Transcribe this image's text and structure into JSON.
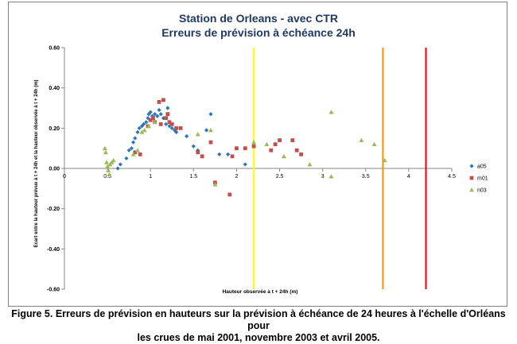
{
  "chart_data": {
    "type": "scatter",
    "title": "Station de Orleans - avec CTR",
    "subtitle": "Erreurs de prévision à échéance 24h",
    "xlabel": "Hauteur observée à t + 24h (m)",
    "ylabel": "Ecart entre la hauteur prévue à t + 24h et la hauteur observée à t + 24h (m)",
    "xlim": [
      0,
      4.5
    ],
    "ylim": [
      -0.6,
      0.6
    ],
    "xticks": [
      0,
      0.5,
      1,
      1.5,
      2,
      2.5,
      3,
      3.5,
      4,
      4.5
    ],
    "xtick_labels": [
      "0",
      "0.5",
      "1",
      "1.5",
      "2",
      "2.5",
      "3",
      "3.5",
      "4",
      "4.5"
    ],
    "yticks": [
      -0.6,
      -0.4,
      -0.2,
      0,
      0.2,
      0.4,
      0.6
    ],
    "ytick_labels": [
      "-0.60",
      "-0.40",
      "-0.20",
      "0.00",
      "0.20",
      "0.40",
      "0.60"
    ],
    "grid": false,
    "legend_position": "right",
    "vertical_lines": [
      {
        "x": 2.2,
        "color": "#ffff00"
      },
      {
        "x": 3.7,
        "color": "#f39200"
      },
      {
        "x": 4.2,
        "color": "#e3000f"
      }
    ],
    "series": [
      {
        "name": "a05",
        "color": "#2e75b6",
        "marker": "diamond",
        "points": [
          [
            0.62,
            0.0
          ],
          [
            0.65,
            0.02
          ],
          [
            0.72,
            0.05
          ],
          [
            0.75,
            0.09
          ],
          [
            0.78,
            0.1
          ],
          [
            0.8,
            0.13
          ],
          [
            0.82,
            0.15
          ],
          [
            0.85,
            0.18
          ],
          [
            0.87,
            0.2
          ],
          [
            0.9,
            0.21
          ],
          [
            0.92,
            0.22
          ],
          [
            0.95,
            0.23
          ],
          [
            0.97,
            0.25
          ],
          [
            0.98,
            0.27
          ],
          [
            1.0,
            0.28
          ],
          [
            1.02,
            0.26
          ],
          [
            1.05,
            0.27
          ],
          [
            1.08,
            0.26
          ],
          [
            1.1,
            0.29
          ],
          [
            1.12,
            0.27
          ],
          [
            1.15,
            0.25
          ],
          [
            1.18,
            0.22
          ],
          [
            1.2,
            0.3
          ],
          [
            1.22,
            0.21
          ],
          [
            1.25,
            0.2
          ],
          [
            1.28,
            0.19
          ],
          [
            1.3,
            0.18
          ],
          [
            1.42,
            0.16
          ],
          [
            1.5,
            0.11
          ],
          [
            1.55,
            0.09
          ],
          [
            1.65,
            0.19
          ],
          [
            1.7,
            0.27
          ],
          [
            1.8,
            0.07
          ],
          [
            1.9,
            0.07
          ],
          [
            2.1,
            0.02
          ]
        ]
      },
      {
        "name": "m01",
        "color": "#c0504d",
        "marker": "square",
        "points": [
          [
            0.82,
            0.08
          ],
          [
            0.88,
            0.07
          ],
          [
            0.97,
            0.21
          ],
          [
            1.0,
            0.24
          ],
          [
            1.03,
            0.25
          ],
          [
            1.05,
            0.23
          ],
          [
            1.1,
            0.33
          ],
          [
            1.12,
            0.22
          ],
          [
            1.15,
            0.34
          ],
          [
            1.18,
            0.25
          ],
          [
            1.2,
            0.27
          ],
          [
            1.22,
            0.23
          ],
          [
            1.25,
            0.22
          ],
          [
            1.3,
            0.2
          ],
          [
            1.35,
            0.2
          ],
          [
            1.55,
            0.08
          ],
          [
            1.6,
            0.06
          ],
          [
            1.7,
            0.13
          ],
          [
            1.75,
            -0.07
          ],
          [
            1.92,
            -0.13
          ],
          [
            1.95,
            0.06
          ],
          [
            2.0,
            0.1
          ],
          [
            2.1,
            0.1
          ],
          [
            2.2,
            0.11
          ],
          [
            2.4,
            0.09
          ],
          [
            2.45,
            0.12
          ],
          [
            2.5,
            0.14
          ],
          [
            2.65,
            0.14
          ],
          [
            2.7,
            0.09
          ],
          [
            2.75,
            0.07
          ]
        ]
      },
      {
        "name": "n03",
        "color": "#9bbb59",
        "marker": "triangle",
        "points": [
          [
            0.47,
            0.1
          ],
          [
            0.48,
            0.08
          ],
          [
            0.49,
            0.03
          ],
          [
            0.5,
            0.01
          ],
          [
            0.51,
            -0.01
          ],
          [
            0.52,
            -0.03
          ],
          [
            0.53,
            0.02
          ],
          [
            0.55,
            0.03
          ],
          [
            0.57,
            0.04
          ],
          [
            0.8,
            0.07
          ],
          [
            0.85,
            0.09
          ],
          [
            0.9,
            0.18
          ],
          [
            0.93,
            0.19
          ],
          [
            0.98,
            0.21
          ],
          [
            1.05,
            0.23
          ],
          [
            1.55,
            0.17
          ],
          [
            1.7,
            0.19
          ],
          [
            1.75,
            -0.08
          ],
          [
            2.2,
            0.13
          ],
          [
            2.35,
            0.12
          ],
          [
            2.55,
            0.06
          ],
          [
            2.85,
            0.02
          ],
          [
            3.1,
            0.28
          ],
          [
            3.1,
            -0.04
          ],
          [
            3.45,
            0.14
          ],
          [
            3.6,
            0.12
          ],
          [
            3.72,
            0.04
          ]
        ]
      }
    ]
  },
  "caption": {
    "line1": "Figure 5. Erreurs de prévision en hauteurs sur la prévision à échéance de 24 heures à l'échelle d'Orléans pour",
    "line2": "les crues de mai 2001, novembre 2003 et avril 2005."
  }
}
